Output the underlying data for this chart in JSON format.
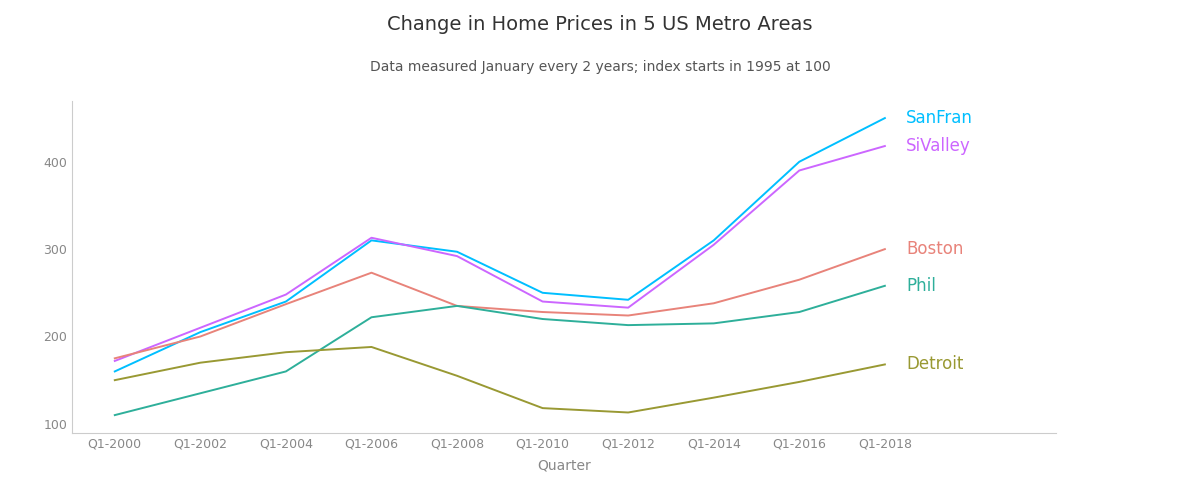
{
  "title": "Change in Home Prices in 5 US Metro Areas",
  "subtitle": "Data measured January every 2 years; index starts in 1995 at 100",
  "xlabel": "Quarter",
  "ylabel": "",
  "background_color": "#ffffff",
  "plot_background_color": "#ffffff",
  "years": [
    2000,
    2002,
    2004,
    2006,
    2008,
    2010,
    2012,
    2014,
    2016,
    2018
  ],
  "series": {
    "SanFran": {
      "color": "#00BFFF",
      "label_color": "#00BFFF",
      "values": [
        160,
        205,
        240,
        310,
        297,
        250,
        242,
        310,
        400,
        450
      ]
    },
    "SiValley": {
      "color": "#CC66FF",
      "label_color": "#CC66FF",
      "values": [
        172,
        210,
        248,
        313,
        292,
        240,
        233,
        305,
        390,
        418
      ]
    },
    "Boston": {
      "color": "#E8837A",
      "label_color": "#E8837A",
      "values": [
        175,
        200,
        237,
        273,
        235,
        228,
        224,
        238,
        265,
        300
      ]
    },
    "Phil": {
      "color": "#2EAF9A",
      "label_color": "#2EAF9A",
      "values": [
        110,
        135,
        160,
        222,
        235,
        220,
        213,
        215,
        228,
        258
      ]
    },
    "Detroit": {
      "color": "#999933",
      "label_color": "#999933",
      "values": [
        150,
        170,
        182,
        188,
        155,
        118,
        113,
        130,
        148,
        168
      ]
    }
  },
  "ylim": [
    90,
    470
  ],
  "yticks": [
    100,
    200,
    300,
    400
  ],
  "title_fontsize": 14,
  "subtitle_fontsize": 10,
  "label_fontsize": 12,
  "axis_label_fontsize": 10,
  "tick_fontsize": 9,
  "spine_color": "#cccccc",
  "tick_color": "#888888"
}
